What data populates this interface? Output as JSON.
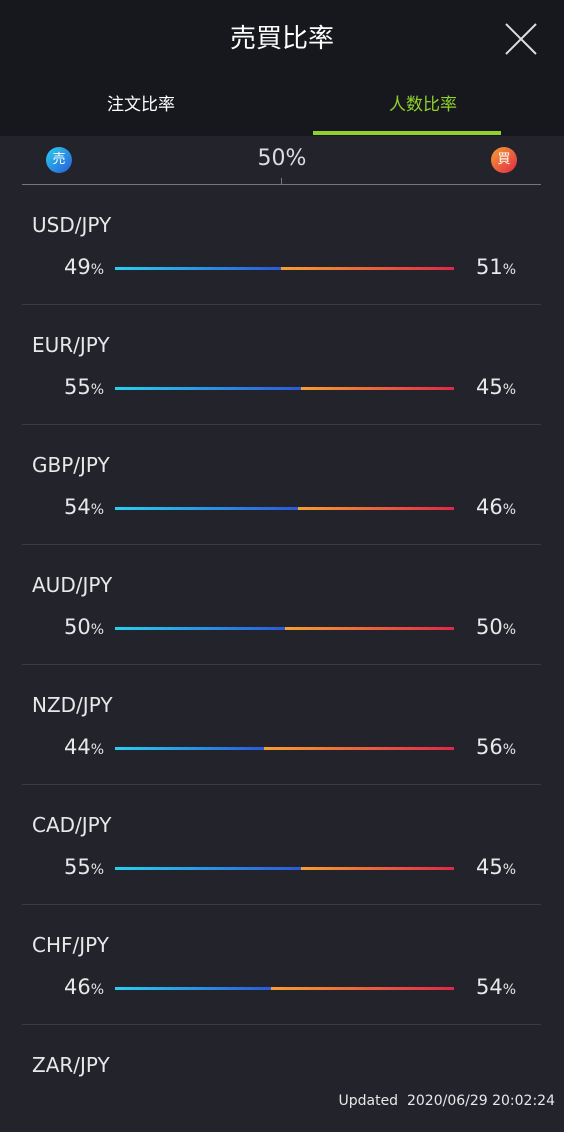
{
  "header": {
    "title": "売買比率"
  },
  "tabs": {
    "items": [
      "注文比率",
      "人数比率"
    ],
    "active": 1
  },
  "scale": {
    "sell_icon": "売",
    "center_label": "50%",
    "buy_icon": "買"
  },
  "percent_sign": "%",
  "rows": [
    {
      "pair": "USD/JPY",
      "sell": 49,
      "buy": 51
    },
    {
      "pair": "EUR/JPY",
      "sell": 55,
      "buy": 45
    },
    {
      "pair": "GBP/JPY",
      "sell": 54,
      "buy": 46
    },
    {
      "pair": "AUD/JPY",
      "sell": 50,
      "buy": 50
    },
    {
      "pair": "NZD/JPY",
      "sell": 44,
      "buy": 56
    },
    {
      "pair": "CAD/JPY",
      "sell": 55,
      "buy": 45
    },
    {
      "pair": "CHF/JPY",
      "sell": 46,
      "buy": 54
    },
    {
      "pair": "ZAR/JPY"
    }
  ],
  "footer": {
    "updated": "Updated  2020/06/29 20:02:24"
  }
}
